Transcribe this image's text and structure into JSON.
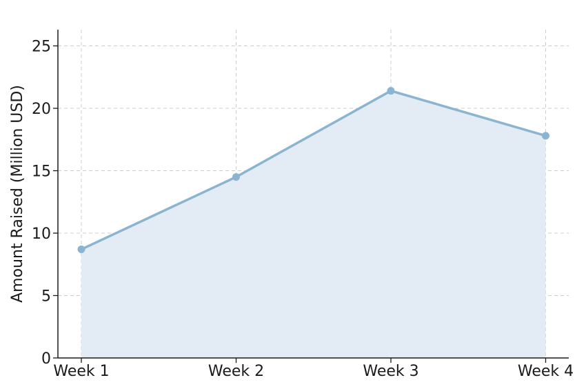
{
  "chart_data": {
    "type": "area",
    "title": "",
    "xlabel": "",
    "ylabel": "Amount Raised (Million USD)",
    "categories": [
      "Week 1",
      "Week 2",
      "Week 3",
      "Week 4"
    ],
    "series": [
      {
        "values": [
          8.7,
          14.5,
          21.4,
          17.8
        ]
      }
    ],
    "ylim": [
      0,
      26.3
    ],
    "yticks": [
      0,
      5,
      10,
      15,
      20,
      25
    ],
    "grid": true,
    "colors": {
      "line": "#8ab4cf",
      "fill": "#e3ecf4",
      "grid": "#cccccc",
      "axis": "#1a1a1a"
    }
  }
}
